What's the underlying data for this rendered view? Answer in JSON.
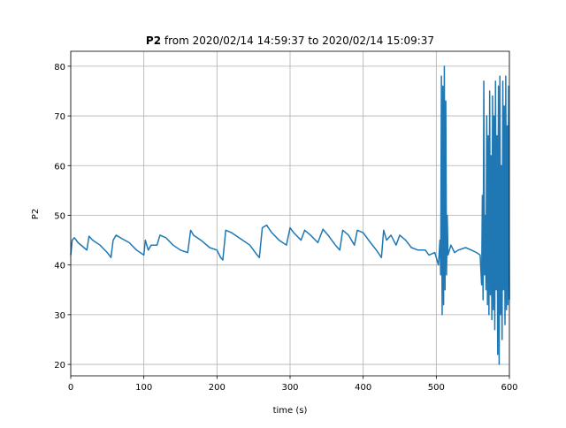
{
  "chart_data": {
    "type": "line",
    "title_bold": "P2",
    "title": "from 2020/02/14 14:59:37 to 2020/02/14 15:09:37",
    "xlabel": "time (s)",
    "ylabel": "P2",
    "xlim": [
      0,
      600
    ],
    "xticks": [
      0,
      100,
      200,
      300,
      400,
      500,
      600
    ],
    "ylim": [
      17.7,
      83.0
    ],
    "yticks": [
      20,
      30,
      40,
      50,
      60,
      70,
      80
    ],
    "grid": true,
    "color": "#1f77b4",
    "x": [
      0,
      2,
      5,
      10,
      18,
      22,
      25,
      30,
      40,
      50,
      55,
      58,
      62,
      70,
      80,
      90,
      100,
      102,
      106,
      110,
      118,
      122,
      130,
      140,
      150,
      160,
      164,
      168,
      178,
      190,
      200,
      205,
      208,
      212,
      220,
      230,
      245,
      255,
      258,
      262,
      268,
      275,
      285,
      295,
      300,
      305,
      315,
      320,
      328,
      338,
      345,
      352,
      362,
      368,
      372,
      380,
      388,
      392,
      400,
      410,
      418,
      425,
      428,
      432,
      438,
      445,
      450,
      458,
      466,
      475,
      485,
      490,
      498,
      503,
      505,
      506,
      507,
      508,
      509,
      510,
      511,
      512,
      513,
      514,
      515,
      516,
      520,
      525,
      530,
      540,
      548,
      555,
      560,
      562,
      563,
      564,
      565,
      566,
      567,
      568,
      569,
      570,
      571,
      572,
      573,
      574,
      575,
      576,
      577,
      578,
      579,
      580,
      581,
      582,
      583,
      584,
      585,
      586,
      587,
      588,
      589,
      590,
      591,
      592,
      593,
      594,
      595,
      596,
      597,
      598,
      599,
      600
    ],
    "values": [
      42,
      45,
      45.5,
      44.5,
      43.5,
      43,
      45.8,
      45,
      44,
      42.5,
      41.5,
      45,
      46,
      45.3,
      44.5,
      43,
      42,
      45,
      43,
      44,
      44,
      46,
      45.5,
      44,
      43,
      42.5,
      47,
      46,
      45,
      43.5,
      43,
      41.5,
      41,
      47,
      46.5,
      45.5,
      44,
      42,
      41.5,
      47.5,
      48,
      46.5,
      45,
      44,
      47.5,
      46.5,
      45,
      47,
      46,
      44.5,
      47.2,
      46,
      44,
      43,
      47,
      46,
      44,
      47,
      46.5,
      44.5,
      43,
      41.5,
      47,
      45,
      46,
      44,
      46,
      45,
      43.5,
      43,
      43,
      42,
      42.5,
      40,
      45,
      38,
      78,
      30,
      76,
      32,
      80,
      35,
      73,
      38,
      50,
      42,
      44,
      42.5,
      43,
      43.5,
      43,
      42.5,
      42,
      36,
      54,
      33,
      77,
      38,
      50,
      35,
      70,
      32,
      66,
      30,
      75,
      34,
      62,
      29,
      74,
      31,
      70,
      27,
      77,
      35,
      66,
      22,
      76,
      20,
      78,
      30,
      60,
      25,
      77,
      35,
      72,
      28,
      78,
      31,
      68,
      32,
      76,
      33
    ]
  }
}
